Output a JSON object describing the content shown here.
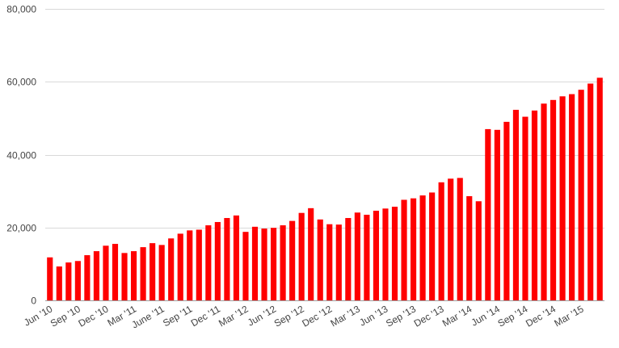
{
  "chart_data": {
    "type": "bar",
    "title": "",
    "xlabel": "",
    "ylabel": "",
    "ylim": [
      0,
      80000
    ],
    "yticks": [
      0,
      20000,
      40000,
      60000,
      80000
    ],
    "ytick_labels": [
      "0",
      "20,000",
      "40,000",
      "60,000",
      "80,000"
    ],
    "grid": true,
    "legend": "none",
    "color": "#ff0000",
    "categories": [
      "Jun '10",
      "Jul '10",
      "Aug '10",
      "Sep '10",
      "Oct '10",
      "Nov '10",
      "Dec '10",
      "Jan '11",
      "Feb '11",
      "Mar '11",
      "Apr '11",
      "May '11",
      "June '11",
      "Jul '11",
      "Aug '11",
      "Sep '11",
      "Oct '11",
      "Nov '11",
      "Dec '11",
      "Jan '12",
      "Feb '12",
      "Mar '12",
      "Apr '12",
      "May '12",
      "Jun '12",
      "Jul '12",
      "Aug '12",
      "Sep '12",
      "Oct '12",
      "Nov '12",
      "Dec '12",
      "Jan '13",
      "Feb '13",
      "Mar '13",
      "Apr '13",
      "May '13",
      "Jun '13",
      "Jul '13",
      "Aug '13",
      "Sep '13",
      "Oct '13",
      "Nov '13",
      "Dec '13",
      "Jan '14",
      "Feb '14",
      "Mar '14",
      "Apr '14",
      "May '14",
      "Jun '14",
      "Jul '14",
      "Aug '14",
      "Sep '14",
      "Oct '14",
      "Nov '14",
      "Dec '14",
      "Jan '15",
      "Feb '15",
      "Mar '15",
      "Apr '15",
      "May '15"
    ],
    "tick_labels": [
      {
        "index": 0,
        "label": "Jun '10"
      },
      {
        "index": 3,
        "label": "Sep '10"
      },
      {
        "index": 6,
        "label": "Dec '10"
      },
      {
        "index": 9,
        "label": "Mar '11"
      },
      {
        "index": 12,
        "label": "June '11"
      },
      {
        "index": 15,
        "label": "Sep '11"
      },
      {
        "index": 18,
        "label": "Dec '11"
      },
      {
        "index": 21,
        "label": "Mar '12"
      },
      {
        "index": 24,
        "label": "Jun '12"
      },
      {
        "index": 27,
        "label": "Sep '12"
      },
      {
        "index": 30,
        "label": "Dec '12"
      },
      {
        "index": 33,
        "label": "Mar '13"
      },
      {
        "index": 36,
        "label": "Jun '13"
      },
      {
        "index": 39,
        "label": "Sep '13"
      },
      {
        "index": 42,
        "label": "Dec '13"
      },
      {
        "index": 45,
        "label": "Mar '14"
      },
      {
        "index": 48,
        "label": "Jun '14"
      },
      {
        "index": 51,
        "label": "Sep '14"
      },
      {
        "index": 54,
        "label": "Dec '14"
      },
      {
        "index": 57,
        "label": "Mar '15"
      }
    ],
    "values": [
      11800,
      9300,
      10400,
      10800,
      12400,
      13500,
      15000,
      15500,
      13000,
      13500,
      14600,
      15700,
      15200,
      17000,
      18300,
      19200,
      19400,
      20600,
      21500,
      22600,
      23300,
      18800,
      20200,
      19700,
      19900,
      20600,
      21800,
      24000,
      25300,
      22200,
      20900,
      20800,
      22600,
      24100,
      23500,
      24600,
      25200,
      25700,
      27600,
      28000,
      28800,
      29600,
      32400,
      33400,
      33600,
      28600,
      27200,
      47000,
      46800,
      49000,
      52300,
      50400,
      52100,
      54000,
      55000,
      56000,
      56600,
      57800,
      59500,
      61100
    ]
  }
}
